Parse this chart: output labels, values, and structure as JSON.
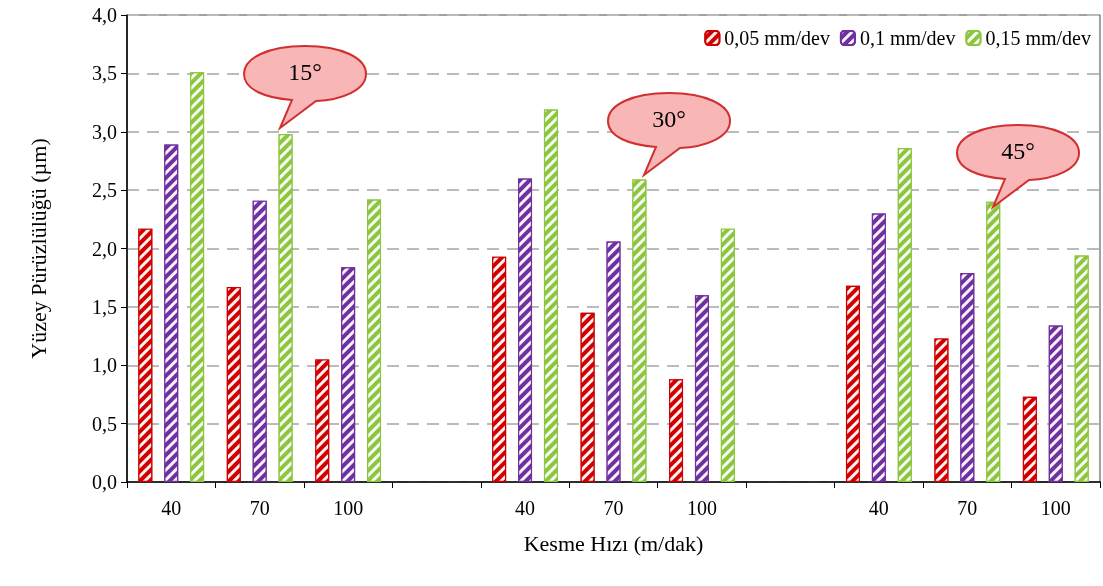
{
  "chart_data": {
    "type": "bar",
    "xlabel": "Kesme Hızı (m/dak)",
    "ylabel": "Yüzey Pürüzlülüğü (µm)",
    "categories": [
      "40",
      "70",
      "100",
      null,
      "40",
      "70",
      "100",
      null,
      "40",
      "70",
      "100"
    ],
    "series": [
      {
        "name": "0,05 mm/dev",
        "color": "#d00000",
        "values": [
          2.17,
          1.67,
          1.05,
          null,
          1.93,
          1.45,
          0.88,
          null,
          1.68,
          1.23,
          0.73
        ]
      },
      {
        "name": "0,1 mm/dev",
        "color": "#7030a0",
        "values": [
          2.89,
          2.41,
          1.84,
          null,
          2.6,
          2.06,
          1.6,
          null,
          2.3,
          1.79,
          1.34
        ]
      },
      {
        "name": "0,15 mm/dev",
        "color": "#8cc63f",
        "values": [
          3.51,
          2.98,
          2.42,
          null,
          3.19,
          2.59,
          2.17,
          null,
          2.86,
          2.4,
          1.94
        ]
      }
    ],
    "ylim": [
      0,
      4
    ],
    "yticks": [
      {
        "value": 0,
        "label": "0,0"
      },
      {
        "value": 0.5,
        "label": "0,5"
      },
      {
        "value": 1,
        "label": "1,0"
      },
      {
        "value": 1.5,
        "label": "1,5"
      },
      {
        "value": 2,
        "label": "2,0"
      },
      {
        "value": 2.5,
        "label": "2,5"
      },
      {
        "value": 3,
        "label": "3,0"
      },
      {
        "value": 3.5,
        "label": "3,5"
      },
      {
        "value": 4,
        "label": "4,0"
      }
    ],
    "grid": "y",
    "legend": "top right",
    "annotations": [
      "15°",
      "30°",
      "45°"
    ]
  }
}
